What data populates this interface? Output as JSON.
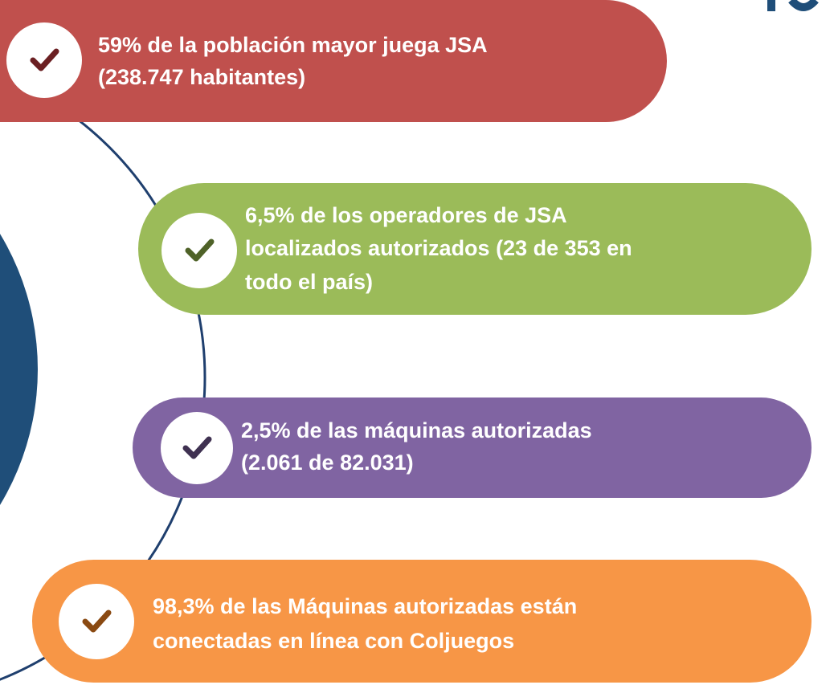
{
  "items": [
    {
      "lines": [
        "59% de la población mayor juega JSA",
        "(238.747 habitantes)"
      ],
      "color": "#c0504d",
      "check_color": "#6b1f22"
    },
    {
      "lines": [
        "6,5% de los operadores de JSA",
        "localizados autorizados (23 de 353 en",
        "todo el país)"
      ],
      "color": "#9bbb59",
      "check_color": "#4f6228"
    },
    {
      "lines": [
        "2,5% de las máquinas autorizadas",
        "(2.061 de 82.031)"
      ],
      "color": "#8064a2",
      "check_color": "#3f3151"
    },
    {
      "lines": [
        "98,3% de las Máquinas autorizadas están",
        "conectadas en línea con Coljuegos"
      ],
      "color": "#f79646",
      "check_color": "#8a4a12"
    }
  ]
}
